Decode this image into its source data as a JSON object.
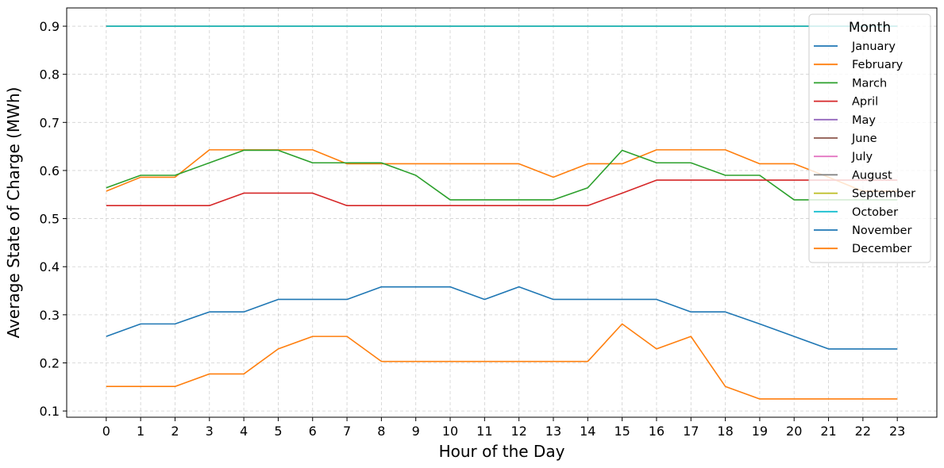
{
  "chart_data": {
    "type": "line",
    "title": "",
    "xlabel": "Hour of the Day",
    "ylabel": "Average State of Charge (MWh)",
    "x": [
      0,
      1,
      2,
      3,
      4,
      5,
      6,
      7,
      8,
      9,
      10,
      11,
      12,
      13,
      14,
      15,
      16,
      17,
      18,
      19,
      20,
      21,
      22,
      23
    ],
    "xticks": [
      "0",
      "1",
      "2",
      "3",
      "4",
      "5",
      "6",
      "7",
      "8",
      "9",
      "10",
      "11",
      "12",
      "13",
      "14",
      "15",
      "16",
      "17",
      "18",
      "19",
      "20",
      "21",
      "22",
      "23"
    ],
    "xlim": [
      -1.15,
      24.15
    ],
    "ylim": [
      0.087,
      0.938
    ],
    "yticks": [
      0.1,
      0.2,
      0.3,
      0.4,
      0.5,
      0.6,
      0.7,
      0.8,
      0.9
    ],
    "ytick_labels": [
      "0.1",
      "0.2",
      "0.3",
      "0.4",
      "0.5",
      "0.6",
      "0.7",
      "0.8",
      "0.9"
    ],
    "grid": true,
    "legend": {
      "title": "Month",
      "placement": "upper right"
    },
    "series": [
      {
        "name": "January",
        "color": "#1f77b4",
        "values": [
          0.9,
          0.9,
          0.9,
          0.9,
          0.9,
          0.9,
          0.9,
          0.9,
          0.9,
          0.9,
          0.9,
          0.9,
          0.9,
          0.9,
          0.9,
          0.9,
          0.9,
          0.9,
          0.9,
          0.9,
          0.9,
          0.9,
          0.9,
          0.9
        ]
      },
      {
        "name": "February",
        "color": "#ff7f0e",
        "values": [
          0.557,
          0.586,
          0.586,
          0.643,
          0.643,
          0.643,
          0.643,
          0.614,
          0.614,
          0.614,
          0.614,
          0.614,
          0.614,
          0.586,
          0.614,
          0.614,
          0.643,
          0.643,
          0.643,
          0.614,
          0.614,
          0.586,
          0.557,
          0.557
        ]
      },
      {
        "name": "March",
        "color": "#2ca02c",
        "values": [
          0.564,
          0.59,
          0.59,
          0.616,
          0.642,
          0.642,
          0.616,
          0.616,
          0.616,
          0.59,
          0.539,
          0.539,
          0.539,
          0.539,
          0.564,
          0.642,
          0.616,
          0.616,
          0.59,
          0.59,
          0.539,
          0.539,
          0.539,
          0.539
        ]
      },
      {
        "name": "April",
        "color": "#d62728",
        "values": [
          0.527,
          0.527,
          0.527,
          0.527,
          0.553,
          0.553,
          0.553,
          0.527,
          0.527,
          0.527,
          0.527,
          0.527,
          0.527,
          0.527,
          0.527,
          0.553,
          0.58,
          0.58,
          0.58,
          0.58,
          0.58,
          0.58,
          0.58,
          0.58
        ]
      },
      {
        "name": "May",
        "color": "#9467bd",
        "values": [
          0.9,
          0.9,
          0.9,
          0.9,
          0.9,
          0.9,
          0.9,
          0.9,
          0.9,
          0.9,
          0.9,
          0.9,
          0.9,
          0.9,
          0.9,
          0.9,
          0.9,
          0.9,
          0.9,
          0.9,
          0.9,
          0.9,
          0.9,
          0.9
        ]
      },
      {
        "name": "June",
        "color": "#8c564b",
        "values": [
          0.9,
          0.9,
          0.9,
          0.9,
          0.9,
          0.9,
          0.9,
          0.9,
          0.9,
          0.9,
          0.9,
          0.9,
          0.9,
          0.9,
          0.9,
          0.9,
          0.9,
          0.9,
          0.9,
          0.9,
          0.9,
          0.9,
          0.9,
          0.9
        ]
      },
      {
        "name": "July",
        "color": "#e377c2",
        "values": [
          0.9,
          0.9,
          0.9,
          0.9,
          0.9,
          0.9,
          0.9,
          0.9,
          0.9,
          0.9,
          0.9,
          0.9,
          0.9,
          0.9,
          0.9,
          0.9,
          0.9,
          0.9,
          0.9,
          0.9,
          0.9,
          0.9,
          0.9,
          0.9
        ]
      },
      {
        "name": "August",
        "color": "#7f7f7f",
        "values": [
          0.9,
          0.9,
          0.9,
          0.9,
          0.9,
          0.9,
          0.9,
          0.9,
          0.9,
          0.9,
          0.9,
          0.9,
          0.9,
          0.9,
          0.9,
          0.9,
          0.9,
          0.9,
          0.9,
          0.9,
          0.9,
          0.9,
          0.9,
          0.9
        ]
      },
      {
        "name": "September",
        "color": "#bcbd22",
        "values": [
          0.9,
          0.9,
          0.9,
          0.9,
          0.9,
          0.9,
          0.9,
          0.9,
          0.9,
          0.9,
          0.9,
          0.9,
          0.9,
          0.9,
          0.9,
          0.9,
          0.9,
          0.9,
          0.9,
          0.9,
          0.9,
          0.9,
          0.9,
          0.9
        ]
      },
      {
        "name": "October",
        "color": "#17becf",
        "values": [
          0.9,
          0.9,
          0.9,
          0.9,
          0.9,
          0.9,
          0.9,
          0.9,
          0.9,
          0.9,
          0.9,
          0.9,
          0.9,
          0.9,
          0.9,
          0.9,
          0.9,
          0.9,
          0.9,
          0.9,
          0.9,
          0.9,
          0.9,
          0.9
        ]
      },
      {
        "name": "November",
        "color": "#1f77b4",
        "values": [
          0.255,
          0.281,
          0.281,
          0.306,
          0.306,
          0.332,
          0.332,
          0.332,
          0.358,
          0.358,
          0.358,
          0.332,
          0.358,
          0.332,
          0.332,
          0.332,
          0.332,
          0.306,
          0.306,
          0.281,
          0.255,
          0.229,
          0.229,
          0.229
        ]
      },
      {
        "name": "December",
        "color": "#ff7f0e",
        "values": [
          0.151,
          0.151,
          0.151,
          0.177,
          0.177,
          0.229,
          0.255,
          0.255,
          0.203,
          0.203,
          0.203,
          0.203,
          0.203,
          0.203,
          0.203,
          0.281,
          0.229,
          0.255,
          0.151,
          0.125,
          0.125,
          0.125,
          0.125,
          0.125
        ]
      }
    ]
  }
}
